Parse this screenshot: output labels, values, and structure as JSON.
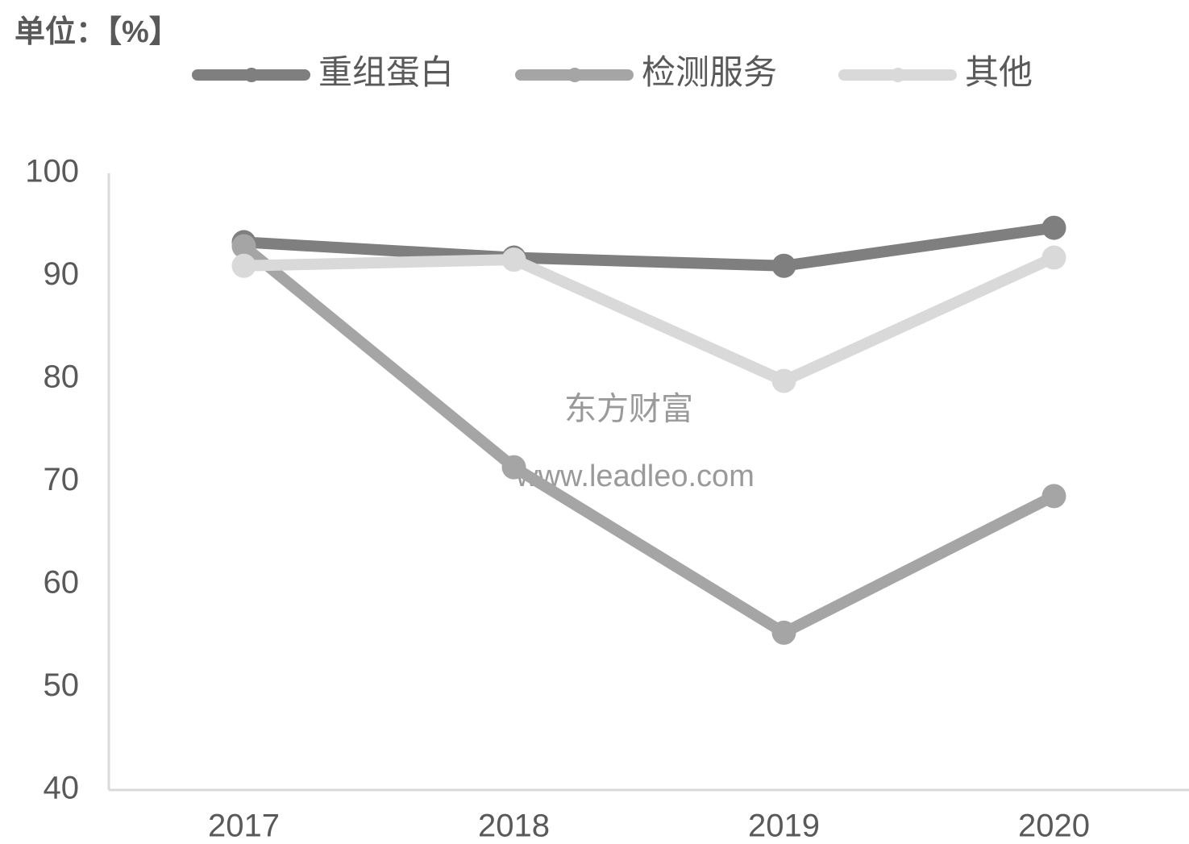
{
  "chart_data": {
    "type": "line",
    "title": "单位：【%】",
    "categories": [
      "2017",
      "2018",
      "2019",
      "2020"
    ],
    "series": [
      {
        "name": "重组蛋白",
        "color": "#7f7f7f",
        "values": [
          93.3,
          91.8,
          91.0,
          94.7
        ]
      },
      {
        "name": "检测服务",
        "color": "#a5a5a5",
        "values": [
          92.9,
          71.4,
          55.3,
          68.6
        ]
      },
      {
        "name": "其他",
        "color": "#d9d9d9",
        "values": [
          91.0,
          91.6,
          79.8,
          91.8
        ]
      }
    ],
    "ylim": [
      40,
      100
    ],
    "yticks": [
      40,
      50,
      60,
      70,
      80,
      90,
      100
    ],
    "grid": false,
    "legend": "top",
    "annotations": [
      "东方财富",
      "www.leadleo.com"
    ]
  }
}
